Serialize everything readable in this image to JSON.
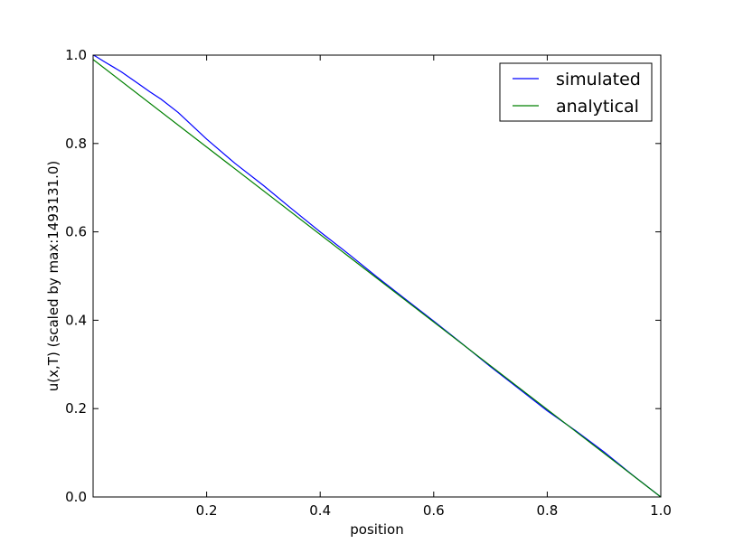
{
  "chart_data": {
    "type": "line",
    "title": "",
    "xlabel": "position",
    "ylabel": "u(x,T) (scaled by max:1493131.0)",
    "xlim": [
      0.0,
      1.0
    ],
    "ylim": [
      0.0,
      1.0
    ],
    "xticks": [
      "0.2",
      "0.4",
      "0.6",
      "0.8",
      "1.0"
    ],
    "xtick_values": [
      0.2,
      0.4,
      0.6,
      0.8,
      1.0
    ],
    "yticks": [
      "0.0",
      "0.2",
      "0.4",
      "0.6",
      "0.8",
      "1.0"
    ],
    "ytick_values": [
      0.0,
      0.2,
      0.4,
      0.6,
      0.8,
      1.0
    ],
    "grid": false,
    "legend_position": "top-right",
    "series": [
      {
        "name": "simulated",
        "color": "#0000ff",
        "x": [
          0.0,
          0.005,
          0.02,
          0.05,
          0.08,
          0.1,
          0.12,
          0.15,
          0.2,
          0.25,
          0.3,
          0.35,
          0.4,
          0.45,
          0.5,
          0.55,
          0.6,
          0.65,
          0.7,
          0.75,
          0.8,
          0.85,
          0.9,
          0.95,
          0.99,
          1.0
        ],
        "y": [
          1.0,
          0.997,
          0.985,
          0.962,
          0.935,
          0.917,
          0.9,
          0.87,
          0.81,
          0.755,
          0.705,
          0.652,
          0.6,
          0.55,
          0.498,
          0.448,
          0.398,
          0.347,
          0.295,
          0.245,
          0.195,
          0.15,
          0.102,
          0.05,
          0.01,
          0.0
        ]
      },
      {
        "name": "analytical",
        "color": "#008000",
        "x": [
          0.0,
          1.0
        ],
        "y": [
          0.99,
          0.0
        ]
      }
    ]
  }
}
